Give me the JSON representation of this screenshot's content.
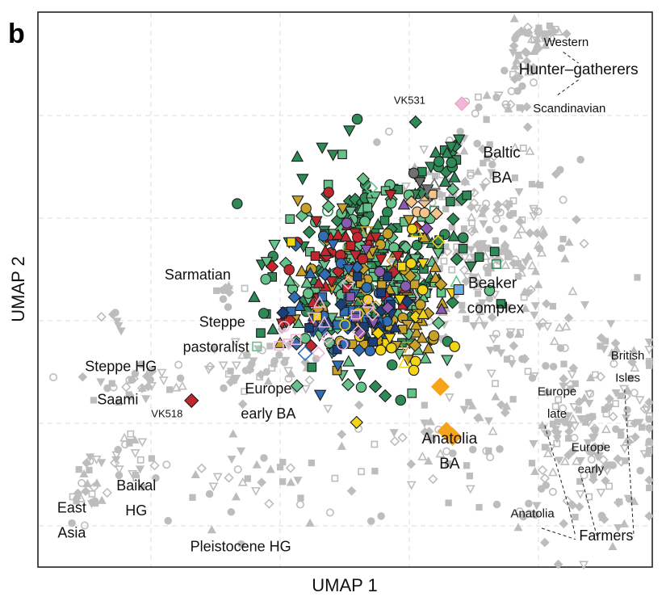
{
  "chart_data": {
    "type": "scatter",
    "panel": "b",
    "title": "",
    "xlabel": "UMAP 1",
    "ylabel": "UMAP 2",
    "xlim": [
      0,
      10
    ],
    "ylim": [
      0,
      10
    ],
    "grid": true,
    "legend": "none",
    "colors": {
      "background_points": "#bdbdbd",
      "dark_green": "#2e8b57",
      "light_green": "#66c28a",
      "olive": "#c7a12a",
      "red": "#c0282d",
      "blue": "#2f6db5",
      "navy": "#1a3f7a",
      "yellow": "#f3d516",
      "orange": "#f7a41d",
      "purple": "#8a5bb0",
      "pink": "#f0b7d6",
      "peach": "#f3c48b",
      "gray": "#707070",
      "light_blue": "#6aaee6"
    },
    "annotations": [
      {
        "name": "western",
        "text": "Western",
        "x": 8.6,
        "y": 9.45,
        "size": "small"
      },
      {
        "name": "hunter-gatherers",
        "text": "Hunter–gatherers",
        "x": 8.8,
        "y": 8.95,
        "size": "big"
      },
      {
        "name": "scandinavian",
        "text": "Scandinavian",
        "x": 8.65,
        "y": 8.25,
        "size": "small"
      },
      {
        "name": "vk531",
        "text": "VK531",
        "x": 6.05,
        "y": 8.4,
        "size": "tiny"
      },
      {
        "name": "baltic",
        "text": "Baltic",
        "x": 7.55,
        "y": 7.45,
        "size": "big"
      },
      {
        "name": "ba-baltic",
        "text": "BA",
        "x": 7.55,
        "y": 7.0,
        "size": "big"
      },
      {
        "name": "sarmatian",
        "text": "Sarmatian",
        "x": 2.6,
        "y": 5.25,
        "size": "mid"
      },
      {
        "name": "beaker",
        "text": "Beaker",
        "x": 7.4,
        "y": 5.1,
        "size": "big"
      },
      {
        "name": "complex",
        "text": "complex",
        "x": 7.45,
        "y": 4.65,
        "size": "big"
      },
      {
        "name": "steppe",
        "text": "Steppe",
        "x": 3.0,
        "y": 4.4,
        "size": "mid"
      },
      {
        "name": "pastoralist",
        "text": "pastoralist",
        "x": 2.9,
        "y": 3.95,
        "size": "mid"
      },
      {
        "name": "steppe-hg",
        "text": "Steppe HG",
        "x": 1.35,
        "y": 3.6,
        "size": "mid"
      },
      {
        "name": "saami",
        "text": "Saami",
        "x": 1.3,
        "y": 3.0,
        "size": "mid"
      },
      {
        "name": "vk518",
        "text": "VK518",
        "x": 2.1,
        "y": 2.75,
        "size": "tiny"
      },
      {
        "name": "europe-early-ba-1",
        "text": "Europe",
        "x": 3.75,
        "y": 3.2,
        "size": "mid"
      },
      {
        "name": "europe-early-ba-2",
        "text": "early BA",
        "x": 3.75,
        "y": 2.75,
        "size": "mid"
      },
      {
        "name": "anatolia-ba-1",
        "text": "Anatolia",
        "x": 6.7,
        "y": 2.3,
        "size": "big"
      },
      {
        "name": "anatolia-ba-2",
        "text": "BA",
        "x": 6.7,
        "y": 1.85,
        "size": "big"
      },
      {
        "name": "europe-late-1",
        "text": "Europe",
        "x": 8.45,
        "y": 3.15,
        "size": "small"
      },
      {
        "name": "europe-late-2",
        "text": "late",
        "x": 8.45,
        "y": 2.75,
        "size": "small"
      },
      {
        "name": "british-1",
        "text": "British",
        "x": 9.6,
        "y": 3.8,
        "size": "small"
      },
      {
        "name": "british-2",
        "text": "Isles",
        "x": 9.6,
        "y": 3.4,
        "size": "small"
      },
      {
        "name": "europe-early-1",
        "text": "Europe",
        "x": 9.0,
        "y": 2.15,
        "size": "small"
      },
      {
        "name": "europe-early-2",
        "text": "early",
        "x": 9.0,
        "y": 1.75,
        "size": "small"
      },
      {
        "name": "anatolia-farmers",
        "text": "Anatolia",
        "x": 8.05,
        "y": 0.95,
        "size": "small"
      },
      {
        "name": "farmers",
        "text": "Farmers",
        "x": 9.25,
        "y": 0.55,
        "size": "mid"
      },
      {
        "name": "east-1",
        "text": "East",
        "x": 0.55,
        "y": 1.05,
        "size": "mid"
      },
      {
        "name": "east-2",
        "text": "Asia",
        "x": 0.55,
        "y": 0.6,
        "size": "mid"
      },
      {
        "name": "baikal-1",
        "text": "Baikal",
        "x": 1.6,
        "y": 1.45,
        "size": "mid"
      },
      {
        "name": "baikal-2",
        "text": "HG",
        "x": 1.6,
        "y": 1.0,
        "size": "mid"
      },
      {
        "name": "pleistocene",
        "text": "Pleistocene HG",
        "x": 3.3,
        "y": 0.35,
        "size": "mid"
      }
    ],
    "leader_lines": [
      {
        "from": [
          8.55,
          9.28
        ],
        "to": [
          8.8,
          9.08
        ]
      },
      {
        "from": [
          8.8,
          8.78
        ],
        "to": [
          8.45,
          8.5
        ]
      },
      {
        "from": [
          8.25,
          2.55
        ],
        "to": [
          8.65,
          1.05
        ]
      },
      {
        "from": [
          8.65,
          1.05
        ],
        "to": [
          8.75,
          0.55
        ]
      },
      {
        "from": [
          9.55,
          3.2
        ],
        "to": [
          9.7,
          0.55
        ]
      },
      {
        "from": [
          8.85,
          1.6
        ],
        "to": [
          9.1,
          0.55
        ]
      },
      {
        "from": [
          8.2,
          0.7
        ],
        "to": [
          8.75,
          0.5
        ]
      }
    ],
    "clusters": [
      {
        "name": "western-hg",
        "color": "background_points",
        "cx": 8.2,
        "cy": 9.6,
        "sx": 0.2,
        "sy": 0.1,
        "n": 25
      },
      {
        "name": "scandinavian-hg",
        "color": "background_points",
        "cx": 7.85,
        "cy": 9.0,
        "sx": 0.15,
        "sy": 0.35,
        "n": 30
      },
      {
        "name": "vk531-trail",
        "color": "background_points",
        "cx": 7.4,
        "cy": 8.35,
        "sx": 0.25,
        "sy": 0.15,
        "n": 12
      },
      {
        "name": "beaker-complex",
        "color": "background_points",
        "cx": 7.3,
        "cy": 5.6,
        "sx": 0.75,
        "sy": 1.0,
        "n": 220
      },
      {
        "name": "baltic-gray",
        "color": "background_points",
        "cx": 6.8,
        "cy": 7.2,
        "sx": 0.45,
        "sy": 0.45,
        "n": 40
      },
      {
        "name": "european-farmers",
        "color": "background_points",
        "cx": 8.9,
        "cy": 2.6,
        "sx": 0.75,
        "sy": 1.0,
        "n": 210
      },
      {
        "name": "anatolia-trail",
        "color": "background_points",
        "cx": 6.5,
        "cy": 2.2,
        "sx": 0.8,
        "sy": 0.5,
        "n": 45
      },
      {
        "name": "steppe-pastoralist-gray",
        "color": "background_points",
        "cx": 3.6,
        "cy": 3.6,
        "sx": 0.45,
        "sy": 0.3,
        "n": 45
      },
      {
        "name": "steppe-hg-gray",
        "color": "background_points",
        "cx": 1.6,
        "cy": 3.35,
        "sx": 0.45,
        "sy": 0.18,
        "n": 35
      },
      {
        "name": "sarmatian-gray",
        "color": "background_points",
        "cx": 3.15,
        "cy": 5.0,
        "sx": 0.12,
        "sy": 0.1,
        "n": 10
      },
      {
        "name": "east-asia-gray",
        "color": "background_points",
        "cx": 0.8,
        "cy": 1.35,
        "sx": 0.2,
        "sy": 0.35,
        "n": 25
      },
      {
        "name": "baikal-gray",
        "color": "background_points",
        "cx": 1.6,
        "cy": 1.95,
        "sx": 0.2,
        "sy": 0.25,
        "n": 25
      },
      {
        "name": "pleistocene-gray",
        "color": "background_points",
        "cx": 3.5,
        "cy": 1.4,
        "sx": 0.8,
        "sy": 0.45,
        "n": 40
      },
      {
        "name": "steppe-hg-upper",
        "color": "background_points",
        "cx": 1.25,
        "cy": 4.5,
        "sx": 0.1,
        "sy": 0.1,
        "n": 6
      },
      {
        "name": "viking-core-dark-green",
        "color": "dark_green",
        "cx": 5.5,
        "cy": 5.4,
        "sx": 0.75,
        "sy": 0.9,
        "n": 190
      },
      {
        "name": "viking-core-light-green",
        "color": "light_green",
        "cx": 5.35,
        "cy": 5.2,
        "sx": 0.7,
        "sy": 0.8,
        "n": 150
      },
      {
        "name": "viking-core-olive",
        "color": "olive",
        "cx": 5.6,
        "cy": 4.9,
        "sx": 0.65,
        "sy": 0.8,
        "n": 80
      },
      {
        "name": "viking-core-red",
        "color": "red",
        "cx": 5.0,
        "cy": 5.5,
        "sx": 0.55,
        "sy": 0.7,
        "n": 45
      },
      {
        "name": "viking-core-blue",
        "color": "blue",
        "cx": 4.9,
        "cy": 4.6,
        "sx": 0.5,
        "sy": 0.55,
        "n": 45
      },
      {
        "name": "viking-core-navy",
        "color": "navy",
        "cx": 5.3,
        "cy": 4.5,
        "sx": 0.55,
        "sy": 0.55,
        "n": 22
      },
      {
        "name": "viking-core-yellow",
        "color": "yellow",
        "cx": 5.7,
        "cy": 4.7,
        "sx": 0.65,
        "sy": 0.75,
        "n": 28
      },
      {
        "name": "viking-core-purple",
        "color": "purple",
        "cx": 5.8,
        "cy": 5.2,
        "sx": 0.6,
        "sy": 0.8,
        "n": 12
      },
      {
        "name": "viking-core-pink",
        "color": "pink",
        "cx": 4.6,
        "cy": 4.4,
        "sx": 0.45,
        "sy": 0.5,
        "n": 14
      },
      {
        "name": "baltic-ba-green",
        "color": "dark_green",
        "cx": 6.7,
        "cy": 7.2,
        "sx": 0.3,
        "sy": 0.25,
        "n": 18
      },
      {
        "name": "peach-points",
        "color": "peach",
        "cx": 6.3,
        "cy": 6.55,
        "sx": 0.2,
        "sy": 0.15,
        "n": 6
      },
      {
        "name": "gray-diamonds",
        "color": "gray",
        "cx": 6.3,
        "cy": 7.0,
        "sx": 0.2,
        "sy": 0.2,
        "n": 5
      }
    ],
    "special_points": [
      {
        "name": "vk531-point",
        "label": "VK531",
        "color": "pink",
        "shape": "diamond",
        "x": 6.9,
        "y": 8.35
      },
      {
        "name": "vk518-point",
        "label": "VK518",
        "color": "red",
        "shape": "diamond",
        "x": 2.5,
        "y": 3.0
      },
      {
        "name": "anatolia-ba-point-1",
        "color": "orange",
        "shape": "diamond",
        "x": 6.55,
        "y": 3.25
      },
      {
        "name": "anatolia-ba-point-2",
        "color": "orange",
        "shape": "diamond",
        "x": 6.65,
        "y": 2.45
      },
      {
        "name": "anatolia-ba-point-3",
        "color": "orange",
        "shape": "diamond",
        "x": 6.75,
        "y": 2.35
      },
      {
        "name": "beaker-blue-square",
        "color": "light_blue",
        "shape": "square",
        "x": 6.85,
        "y": 5.0
      },
      {
        "name": "europe-early-ba-open-diamond",
        "color": "blue",
        "shape": "open-diamond",
        "x": 4.35,
        "y": 3.85
      },
      {
        "name": "europe-early-ba-open-square",
        "color": "pink",
        "shape": "open-square",
        "x": 4.2,
        "y": 4.1
      }
    ]
  }
}
